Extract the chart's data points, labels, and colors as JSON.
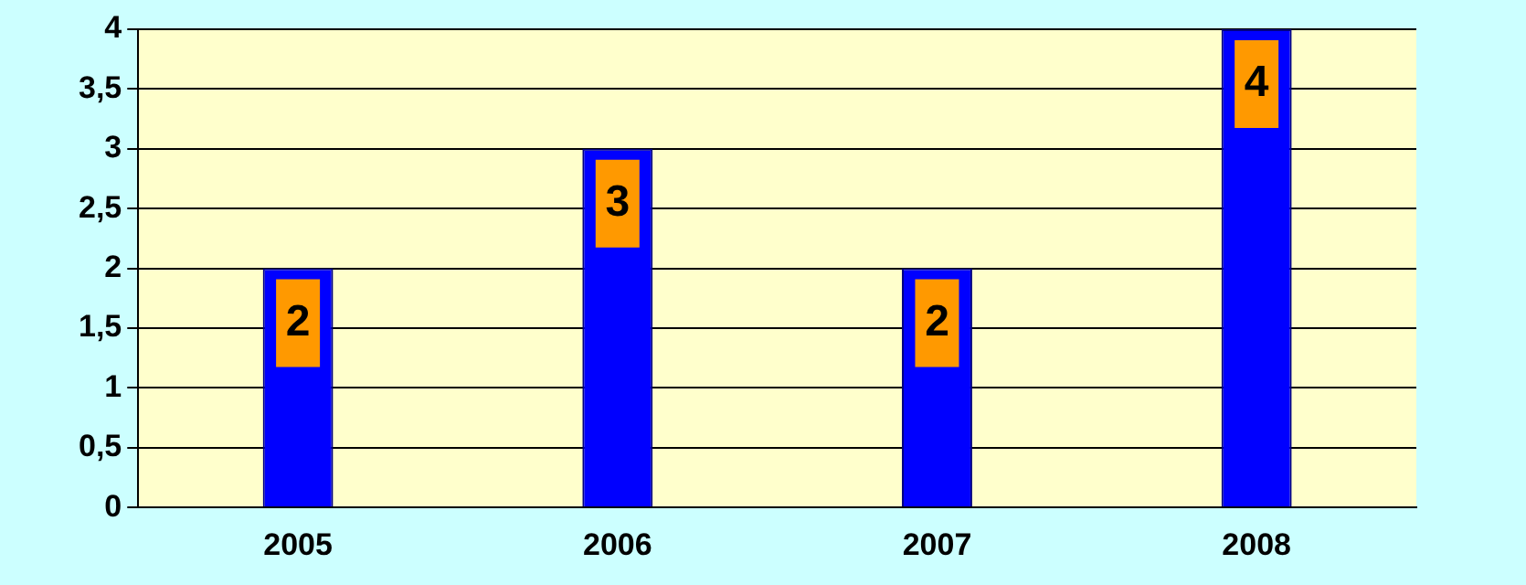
{
  "chart_data": {
    "type": "bar",
    "categories": [
      "2005",
      "2006",
      "2007",
      "2008"
    ],
    "values": [
      2,
      3,
      2,
      4
    ],
    "color": "#0000ff",
    "ylim": [
      0,
      4
    ],
    "yticks": [
      0,
      {
        "value": 0.5,
        "label": "0,5"
      },
      1,
      {
        "value": 1.5,
        "label": "1,5"
      },
      2,
      {
        "value": 2.5,
        "label": "2,5"
      },
      3,
      {
        "value": 3.5,
        "label": "3,5"
      },
      4
    ],
    "grid": "y",
    "data_labels": true
  }
}
